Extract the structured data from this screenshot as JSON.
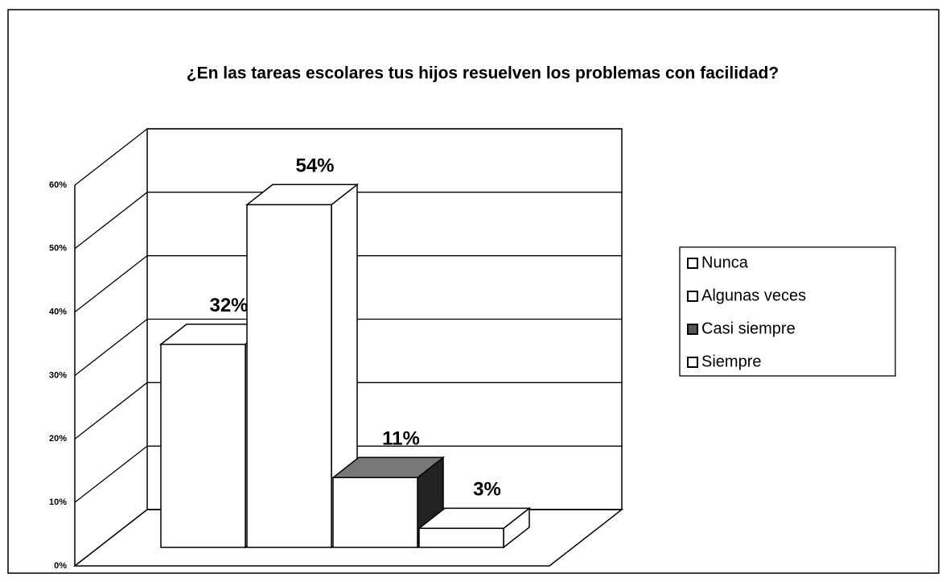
{
  "chart_data": {
    "type": "bar3d",
    "title": "¿En las tareas escolares tus hijos resuelven los problemas  con facilidad?",
    "series": [
      {
        "name": "Nunca",
        "color": "#ffffff",
        "side_color": "#ffffff",
        "values": [
          32
        ],
        "value_labels": [
          "32%"
        ]
      },
      {
        "name": "Algunas veces",
        "color": "#ffffff",
        "side_color": "#ffffff",
        "values": [
          54
        ],
        "value_labels": [
          "54%"
        ]
      },
      {
        "name": "Casi siempre",
        "color": "#ffffff",
        "side_color": "#222222",
        "values": [
          11
        ],
        "value_labels": [
          "11%"
        ]
      },
      {
        "name": "Siempre",
        "color": "#ffffff",
        "side_color": "#ffffff",
        "values": [
          3
        ],
        "value_labels": [
          "3%"
        ]
      }
    ],
    "ylim": [
      0,
      60
    ],
    "yticks": [
      {
        "value": 0,
        "label": "0%"
      },
      {
        "value": 10,
        "label": "10%"
      },
      {
        "value": 20,
        "label": "20%"
      },
      {
        "value": 30,
        "label": "30%"
      },
      {
        "value": 40,
        "label": "40%"
      },
      {
        "value": 50,
        "label": "50%"
      },
      {
        "value": 60,
        "label": "60%"
      }
    ],
    "grid": true,
    "legend": "right"
  }
}
